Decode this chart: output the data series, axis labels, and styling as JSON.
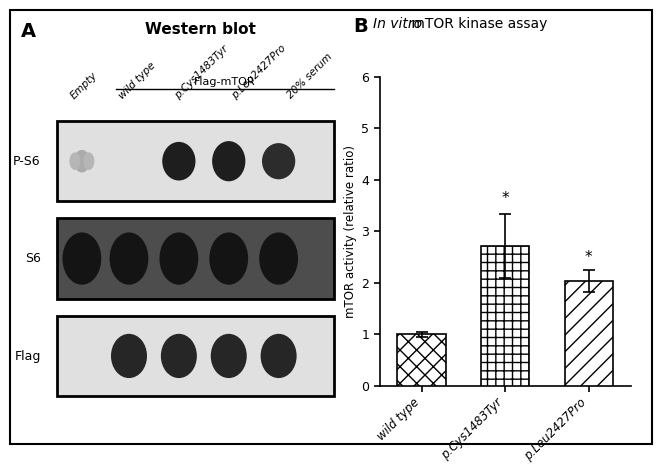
{
  "panel_a_title": "Western blot",
  "panel_b_title_italic": "In vitro",
  "panel_b_title_normal": " mTOR kinase assay",
  "flag_mtor_label": "Flag-mTOR",
  "lane_labels": [
    "Empty",
    "wild type",
    "p.Cys1483Tyr",
    "p.Leu2427Pro",
    "20% serum"
  ],
  "row_labels": [
    "P-S6",
    "S6",
    "Flag"
  ],
  "bar_categories": [
    "wild type",
    "p.Cys1483Tyr",
    "p.Leu2427Pro"
  ],
  "bar_values": [
    1.0,
    2.72,
    2.03
  ],
  "bar_errors": [
    0.05,
    0.62,
    0.22
  ],
  "ylabel": "mTOR activity (relative ratio)",
  "ylim": [
    0,
    6
  ],
  "yticks": [
    0,
    1,
    2,
    3,
    4,
    5,
    6
  ],
  "background_color": "#ffffff"
}
